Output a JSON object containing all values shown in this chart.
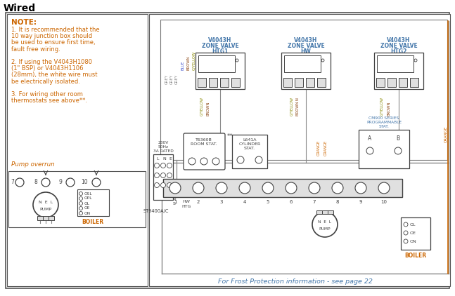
{
  "title": "Wired",
  "bg_color": "#ffffff",
  "note_color": "#cc6600",
  "label_color": "#4477aa",
  "diagram_color": "#404040",
  "wire_gray": "#888888",
  "wire_blue": "#4455cc",
  "wire_orange": "#cc6600",
  "wire_brown": "#8B4513",
  "wire_gyellow": "#888800",
  "note_title": "NOTE:",
  "note_lines": [
    "1. It is recommended that the",
    "10 way junction box should",
    "be used to ensure first time,",
    "fault free wiring.",
    "",
    "2. If using the V4043H1080",
    "(1\" BSP) or V4043H1106",
    "(28mm), the white wire must",
    "be electrically isolated.",
    "",
    "3. For wiring other room",
    "thermostats see above**."
  ],
  "pump_overrun": "Pump overrun",
  "footer": "For Frost Protection information - see page 22",
  "valve1_label": "V4043H\nZONE VALVE\nHTG1",
  "valve2_label": "V4043H\nZONE VALVE\nHW",
  "valve3_label": "V4043H\nZONE VALVE\nHTG2",
  "cm900_label": "CM900 SERIES\nPROGRAMMABLE\nSTAT.",
  "t6360b_label": "T6360B\nROOM STAT.",
  "l641a_label": "L641A\nCYLINDER\nSTAT.",
  "st9400_label": "ST9400A/C",
  "boiler_label": "BOILER",
  "pump_label": "PUMP",
  "power_label": "230V\n50Hz\n3A RATED"
}
